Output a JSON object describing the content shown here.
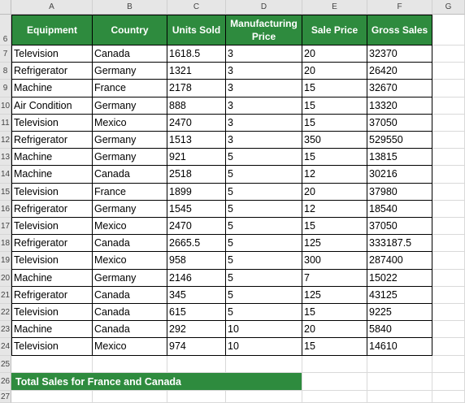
{
  "columns": [
    "A",
    "B",
    "C",
    "D",
    "E",
    "F",
    "G"
  ],
  "rows": [
    "6",
    "7",
    "8",
    "9",
    "10",
    "11",
    "12",
    "13",
    "14",
    "15",
    "16",
    "17",
    "18",
    "19",
    "20",
    "21",
    "22",
    "23",
    "24",
    "25",
    "26",
    "27"
  ],
  "table": {
    "headers": [
      "Equipment",
      "Country",
      "Units Sold",
      "Manufacturing Price",
      "Sale Price",
      "Gross Sales"
    ],
    "data": [
      [
        "Television",
        "Canada",
        "1618.5",
        "3",
        "20",
        "32370"
      ],
      [
        "Refrigerator",
        "Germany",
        "1321",
        "3",
        "20",
        "26420"
      ],
      [
        "Machine",
        "France",
        "2178",
        "3",
        "15",
        "32670"
      ],
      [
        "Air Condition",
        "Germany",
        "888",
        "3",
        "15",
        "13320"
      ],
      [
        "Television",
        "Mexico",
        "2470",
        "3",
        "15",
        "37050"
      ],
      [
        "Refrigerator",
        "Germany",
        "1513",
        "3",
        "350",
        "529550"
      ],
      [
        "Machine",
        "Germany",
        "921",
        "5",
        "15",
        "13815"
      ],
      [
        "Machine",
        "Canada",
        "2518",
        "5",
        "12",
        "30216"
      ],
      [
        "Television",
        "France",
        "1899",
        "5",
        "20",
        "37980"
      ],
      [
        "Refrigerator",
        "Germany",
        "1545",
        "5",
        "12",
        "18540"
      ],
      [
        "Television",
        "Mexico",
        "2470",
        "5",
        "15",
        "37050"
      ],
      [
        "Refrigerator",
        "Canada",
        "2665.5",
        "5",
        "125",
        "333187.5"
      ],
      [
        "Television",
        "Mexico",
        "958",
        "5",
        "300",
        "287400"
      ],
      [
        "Machine",
        "Germany",
        "2146",
        "5",
        "7",
        "15022"
      ],
      [
        "Refrigerator",
        "Canada",
        "345",
        "5",
        "125",
        "43125"
      ],
      [
        "Television",
        "Canada",
        "615",
        "5",
        "15",
        "9225"
      ],
      [
        "Machine",
        "Canada",
        "292",
        "10",
        "20",
        "5840"
      ],
      [
        "Television",
        "Mexico",
        "974",
        "10",
        "15",
        "14610"
      ]
    ]
  },
  "total_label": "Total Sales for France and Canada",
  "colors": {
    "header_fill": "#2e8b3e",
    "header_text": "#ffffff",
    "grid": "#d9d9d9",
    "border": "#000000"
  }
}
